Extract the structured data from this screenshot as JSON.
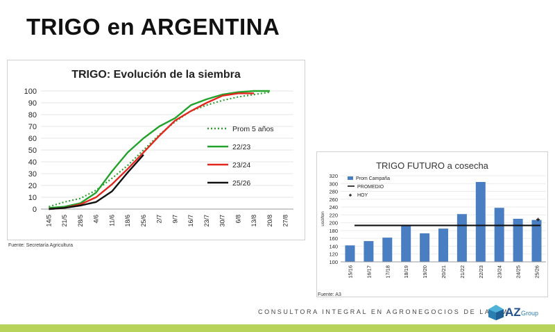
{
  "page": {
    "title": "TRIGO en ARGENTINA",
    "footer": "CONSULTORA INTEGRAL EN AGRONEGOCIOS DE LATAM",
    "logo_text": "AZ",
    "logo_sub": "Group"
  },
  "colors": {
    "prom5": "#2ca02c",
    "s2223": "#22a22a",
    "s2324": "#e3261e",
    "s2526": "#111111",
    "bars": "#4a7ec2",
    "promedio": "#111111",
    "bottom_bar": "#b8d35a"
  },
  "chart_data": [
    {
      "type": "line",
      "title": "TRIGO: Evolución de la siembra",
      "source": "Fuente: Secretaría Agricultura",
      "categories": [
        "14/5",
        "21/5",
        "28/5",
        "4/6",
        "11/6",
        "18/6",
        "25/6",
        "2/7",
        "9/7",
        "16/7",
        "23/7",
        "30/7",
        "6/8",
        "13/8",
        "20/8",
        "27/8"
      ],
      "ylim": [
        0,
        100
      ],
      "yticks": [
        0,
        10,
        20,
        30,
        40,
        50,
        60,
        70,
        80,
        90,
        100
      ],
      "legend_position": "right",
      "series": [
        {
          "name": "Prom 5 años",
          "style": "dotted",
          "values": [
            2,
            6,
            9,
            16,
            26,
            37,
            50,
            63,
            74,
            83,
            88,
            92,
            95,
            97,
            99,
            null
          ]
        },
        {
          "name": "22/23",
          "style": "solid",
          "values": [
            1,
            2,
            5,
            14,
            32,
            48,
            60,
            70,
            77,
            88,
            93,
            97,
            99,
            100,
            100,
            null
          ]
        },
        {
          "name": "23/24",
          "style": "solid",
          "values": [
            0,
            1,
            4,
            10,
            21,
            34,
            48,
            62,
            75,
            83,
            90,
            96,
            98,
            98,
            null,
            null
          ]
        },
        {
          "name": "25/26",
          "style": "solid",
          "values": [
            0,
            1,
            3,
            6,
            15,
            31,
            46,
            null,
            null,
            null,
            null,
            null,
            null,
            null,
            null,
            null
          ]
        }
      ]
    },
    {
      "type": "bar",
      "title": "TRIGO FUTURO a cosecha",
      "source": "Fuente: A3",
      "ylabel": "usd/ton",
      "categories": [
        "15/16",
        "16/17",
        "17/18",
        "18/19",
        "19/20",
        "20/21",
        "21/22",
        "22/23",
        "23/24",
        "24/25",
        "25/26"
      ],
      "ylim": [
        100,
        320
      ],
      "yticks": [
        100,
        120,
        140,
        160,
        180,
        200,
        220,
        240,
        260,
        280,
        300,
        320
      ],
      "legend_position": "top-left",
      "series": [
        {
          "name": "Prom Campaña",
          "values": [
            142,
            153,
            162,
            192,
            173,
            185,
            222,
            304,
            238,
            210,
            207
          ]
        },
        {
          "name": "PROMEDIO",
          "value": 193
        },
        {
          "name": "HOY",
          "category": "25/26",
          "value": 208
        }
      ]
    }
  ]
}
